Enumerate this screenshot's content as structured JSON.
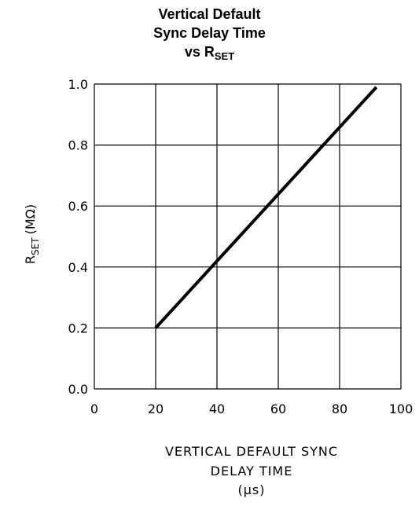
{
  "chart_data": {
    "type": "line",
    "title_lines": [
      "Vertical Default",
      "Sync Delay Time",
      "vs R"
    ],
    "title_subscript": "SET",
    "xlabel_lines": [
      "VERTICAL DEFAULT SYNC",
      "DELAY TIME",
      "(μs)"
    ],
    "ylabel_main": "R",
    "ylabel_subscript": "SET",
    "ylabel_unit": "(MΩ)",
    "xlim": [
      0,
      100
    ],
    "ylim": [
      0.0,
      1.0
    ],
    "x_ticks": [
      0,
      20,
      40,
      60,
      80,
      100
    ],
    "y_ticks": [
      0.0,
      0.2,
      0.4,
      0.6,
      0.8,
      1.0
    ],
    "x_tick_labels": [
      "0",
      "20",
      "40",
      "60",
      "80",
      "100"
    ],
    "y_tick_labels": [
      "0.0",
      "0.2",
      "0.4",
      "0.6",
      "0.8",
      "1.0"
    ],
    "grid": true,
    "series": [
      {
        "x": [
          20,
          92
        ],
        "y": [
          0.2,
          0.99
        ],
        "color": "#000000"
      }
    ]
  }
}
